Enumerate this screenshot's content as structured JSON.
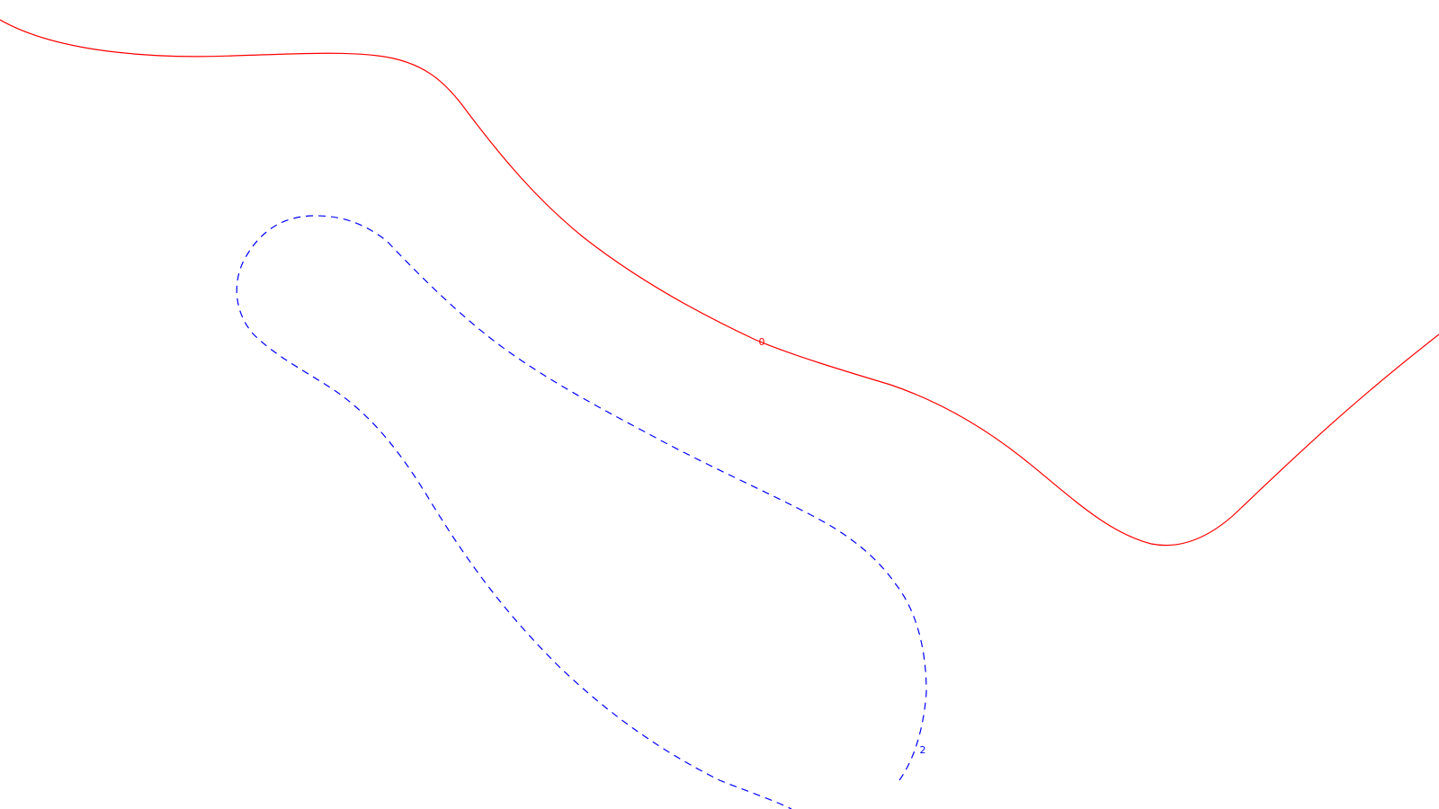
{
  "contours": [
    {
      "level": "0",
      "label": "0",
      "color": "#ff0000",
      "style": "solid"
    },
    {
      "level": "2",
      "label": "2",
      "color": "#0000ff",
      "style": "dashed"
    }
  ]
}
